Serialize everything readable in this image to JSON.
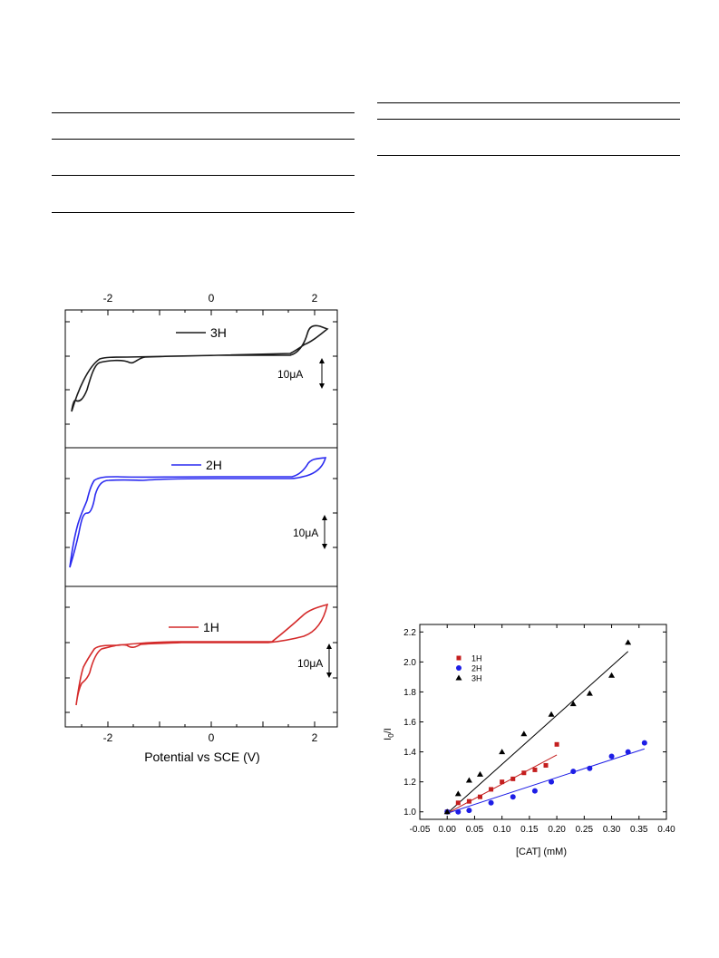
{
  "cv_figure": {
    "top_axis_ticks": [
      "-2",
      "0",
      "2"
    ],
    "bottom_axis_ticks": [
      "-2",
      "0",
      "2"
    ],
    "xlabel": "Potential vs SCE (V)",
    "panels": [
      {
        "name": "3H",
        "color": "#1a1a1a",
        "scale_label": "10μA"
      },
      {
        "name": "2H",
        "color": "#2a2af0",
        "scale_label": "10μA"
      },
      {
        "name": "1H",
        "color": "#d42a2a",
        "scale_label": "10μA"
      }
    ]
  },
  "chart_data": {
    "type": "scatter",
    "xlabel": "[CAT] (mM)",
    "ylabel": "I0/I",
    "xlim": [
      -0.05,
      0.4
    ],
    "ylim": [
      0.95,
      2.25
    ],
    "x_ticks": [
      "-0.05",
      "0.00",
      "0.05",
      "0.10",
      "0.15",
      "0.20",
      "0.25",
      "0.30",
      "0.35",
      "0.40"
    ],
    "y_ticks": [
      "1.0",
      "1.2",
      "1.4",
      "1.6",
      "1.8",
      "2.0",
      "2.2"
    ],
    "legend_position": "top-left",
    "series": [
      {
        "name": "1H",
        "color": "#c41e1e",
        "marker": "square",
        "x": [
          0.0,
          0.02,
          0.04,
          0.06,
          0.08,
          0.1,
          0.12,
          0.14,
          0.16,
          0.18,
          0.2
        ],
        "y": [
          1.0,
          1.06,
          1.07,
          1.1,
          1.15,
          1.2,
          1.22,
          1.26,
          1.28,
          1.31,
          1.45
        ],
        "fit": [
          [
            0.0,
            0.99
          ],
          [
            0.2,
            1.38
          ]
        ]
      },
      {
        "name": "2H",
        "color": "#1e1ee6",
        "marker": "circle",
        "x": [
          0.0,
          0.02,
          0.04,
          0.08,
          0.12,
          0.16,
          0.19,
          0.23,
          0.26,
          0.3,
          0.33,
          0.36
        ],
        "y": [
          1.0,
          1.0,
          1.01,
          1.06,
          1.1,
          1.14,
          1.2,
          1.27,
          1.29,
          1.37,
          1.4,
          1.46
        ],
        "fit": [
          [
            0.0,
            0.99
          ],
          [
            0.36,
            1.42
          ]
        ]
      },
      {
        "name": "3H",
        "color": "#000000",
        "marker": "triangle",
        "x": [
          0.0,
          0.02,
          0.04,
          0.06,
          0.1,
          0.14,
          0.19,
          0.23,
          0.26,
          0.3,
          0.33
        ],
        "y": [
          1.0,
          1.12,
          1.21,
          1.25,
          1.4,
          1.52,
          1.65,
          1.72,
          1.79,
          1.91,
          2.13
        ],
        "fit": [
          [
            0.0,
            0.99
          ],
          [
            0.33,
            2.07
          ]
        ]
      }
    ]
  }
}
